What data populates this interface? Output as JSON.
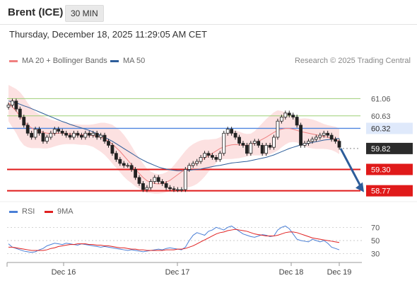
{
  "header": {
    "title": "Brent (ICE)",
    "interval": "30 MIN"
  },
  "timestamp": "Thursday, December 18, 2025 11:29:05 AM CET",
  "legend": {
    "ma20_bb": {
      "label": "MA 20 + Bollinger Bands",
      "color": "#f08080"
    },
    "ma50": {
      "label": "MA 50",
      "color": "#2d5d9a"
    }
  },
  "credit": "Research © 2025 Trading Central",
  "rsi_legend": {
    "rsi": {
      "label": "RSI",
      "color": "#4a7fd6"
    },
    "ma9": {
      "label": "9MA",
      "color": "#e02020"
    }
  },
  "chart_data": [
    {
      "type": "candlestick",
      "ylim": [
        58.5,
        61.4
      ],
      "x_ticks": [
        "Dec 16",
        "Dec 17",
        "Dec 18",
        "Dec 19"
      ],
      "levels": [
        {
          "value": "61.06",
          "kind": "resistance",
          "color": "#9ecf76"
        },
        {
          "value": "60.63",
          "kind": "resistance",
          "color": "#9ecf76"
        },
        {
          "value": "60.32",
          "kind": "pivot",
          "color": "#4f86e0"
        },
        {
          "value": "59.82",
          "kind": "last",
          "color": "#333333"
        },
        {
          "value": "59.30",
          "kind": "support",
          "color": "#e01a1a"
        },
        {
          "value": "58.77",
          "kind": "support",
          "color": "#e01a1a"
        }
      ],
      "close": [
        60.9,
        61.0,
        60.8,
        60.6,
        60.4,
        60.2,
        60.1,
        60.3,
        60.2,
        60.0,
        60.1,
        60.2,
        60.3,
        60.25,
        60.2,
        60.15,
        60.1,
        60.2,
        60.15,
        60.1,
        60.2,
        60.15,
        60.2,
        60.1,
        60.15,
        60.0,
        59.9,
        59.7,
        59.55,
        59.45,
        59.4,
        59.4,
        59.3,
        59.1,
        58.95,
        58.8,
        58.85,
        59.0,
        59.1,
        59.0,
        58.95,
        58.85,
        58.82,
        58.8,
        58.8,
        58.8,
        59.3,
        59.4,
        59.45,
        59.5,
        59.6,
        59.7,
        59.65,
        59.6,
        59.55,
        59.7,
        60.2,
        60.3,
        60.2,
        60.1,
        59.95,
        59.9,
        59.7,
        59.95,
        60.0,
        59.9,
        59.7,
        59.9,
        59.85,
        60.1,
        60.5,
        60.6,
        60.7,
        60.65,
        60.6,
        60.4,
        59.9,
        59.95,
        60.0,
        60.05,
        60.1,
        60.15,
        60.2,
        60.15,
        60.05,
        60.0,
        59.85
      ],
      "ma20": [
        60.95,
        60.85,
        60.75,
        60.62,
        60.5,
        60.4,
        60.33,
        60.28,
        60.25,
        60.22,
        60.2,
        60.19,
        60.19,
        60.2,
        60.2,
        60.19,
        60.18,
        60.18,
        60.17,
        60.16,
        60.16,
        60.15,
        60.14,
        60.12,
        60.1,
        60.06,
        60.0,
        59.93,
        59.84,
        59.75,
        59.64,
        59.53,
        59.42,
        59.3,
        59.2,
        59.1,
        59.02,
        58.98,
        58.95,
        58.94,
        58.95,
        58.98,
        59.03,
        59.1,
        59.17,
        59.24,
        59.3,
        59.36,
        59.41,
        59.46,
        59.52,
        59.58,
        59.64,
        59.7,
        59.76,
        59.82,
        59.86,
        59.89,
        59.91,
        59.92,
        59.91,
        59.9,
        59.9,
        59.92,
        59.95,
        60.0,
        60.05,
        60.1,
        60.16,
        60.22,
        60.27,
        60.3,
        60.32,
        60.32,
        60.3,
        60.27,
        60.24,
        60.22,
        60.2,
        60.18,
        60.16,
        60.14,
        60.12,
        60.1,
        60.08,
        60.05,
        60.0
      ],
      "bb_width": [
        0.45,
        0.5,
        0.55,
        0.6,
        0.6,
        0.55,
        0.5,
        0.45,
        0.42,
        0.4,
        0.38,
        0.35,
        0.32,
        0.3,
        0.28,
        0.26,
        0.25,
        0.25,
        0.25,
        0.25,
        0.25,
        0.26,
        0.28,
        0.32,
        0.36,
        0.4,
        0.44,
        0.48,
        0.5,
        0.52,
        0.52,
        0.5,
        0.46,
        0.42,
        0.38,
        0.35,
        0.3,
        0.27,
        0.25,
        0.24,
        0.24,
        0.25,
        0.27,
        0.3,
        0.35,
        0.4,
        0.46,
        0.5,
        0.52,
        0.52,
        0.5,
        0.46,
        0.4,
        0.35,
        0.3,
        0.28,
        0.3,
        0.33,
        0.35,
        0.35,
        0.33,
        0.3,
        0.28,
        0.27,
        0.3,
        0.35,
        0.4,
        0.45,
        0.48,
        0.5,
        0.5,
        0.45,
        0.4,
        0.35,
        0.32,
        0.3,
        0.32,
        0.35,
        0.36,
        0.36,
        0.35,
        0.33,
        0.31,
        0.3,
        0.3,
        0.31,
        0.32
      ],
      "ma50": [
        61.0,
        60.98,
        60.95,
        60.92,
        60.88,
        60.85,
        60.81,
        60.77,
        60.73,
        60.69,
        60.65,
        60.61,
        60.57,
        60.53,
        60.49,
        60.46,
        60.42,
        60.39,
        60.36,
        60.33,
        60.3,
        60.27,
        60.23,
        60.19,
        60.15,
        60.1,
        60.05,
        60.0,
        59.94,
        59.88,
        59.82,
        59.76,
        59.7,
        59.64,
        59.58,
        59.53,
        59.48,
        59.44,
        59.4,
        59.36,
        59.33,
        59.31,
        59.29,
        59.28,
        59.27,
        59.27,
        59.27,
        59.28,
        59.29,
        59.3,
        59.31,
        59.33,
        59.35,
        59.37,
        59.39,
        59.4,
        59.42,
        59.44,
        59.46,
        59.47,
        59.48,
        59.49,
        59.5,
        59.52,
        59.54,
        59.56,
        59.58,
        59.6,
        59.63,
        59.66,
        59.7,
        59.74,
        59.78,
        59.82,
        59.85,
        59.88,
        59.91,
        59.93,
        59.95,
        59.97,
        59.99,
        60.01,
        60.03,
        60.04,
        60.05,
        60.06,
        60.07
      ],
      "projection": {
        "from": 59.82,
        "to": 58.77
      }
    },
    {
      "type": "line",
      "ylim": [
        20,
        80
      ],
      "y_ticks": [
        "70",
        "50",
        "30"
      ],
      "series": [
        {
          "name": "RSI",
          "values": [
            45,
            40,
            38,
            36,
            34,
            33,
            32,
            33,
            36,
            38,
            42,
            44,
            46,
            45,
            44,
            46,
            45,
            44,
            43,
            45,
            44,
            43,
            42,
            41,
            40,
            41,
            40,
            39,
            38,
            37,
            36,
            35,
            36,
            35,
            34,
            33,
            34,
            35,
            36,
            37,
            36,
            38,
            39,
            38,
            37,
            36,
            40,
            50,
            58,
            62,
            60,
            58,
            64,
            66,
            70,
            68,
            66,
            70,
            72,
            68,
            64,
            60,
            58,
            56,
            55,
            57,
            59,
            58,
            56,
            57,
            66,
            70,
            72,
            68,
            60,
            52,
            50,
            49,
            48,
            52,
            50,
            48,
            50,
            46,
            40,
            38,
            36
          ]
        },
        {
          "name": "9MA",
          "values": [
            40,
            40,
            39,
            38,
            37,
            36,
            35,
            35,
            35,
            35,
            36,
            38,
            39,
            41,
            42,
            43,
            44,
            44,
            45,
            45,
            45,
            44,
            44,
            43,
            43,
            42,
            42,
            41,
            40,
            39,
            39,
            38,
            37,
            37,
            36,
            36,
            35,
            35,
            35,
            35,
            35,
            36,
            36,
            36,
            37,
            37,
            38,
            40,
            42,
            45,
            48,
            51,
            54,
            57,
            60,
            62,
            63,
            65,
            66,
            67,
            66,
            65,
            64,
            62,
            60,
            59,
            58,
            57,
            57,
            57,
            58,
            60,
            62,
            63,
            63,
            62,
            60,
            58,
            56,
            54,
            53,
            52,
            51,
            50,
            49,
            48,
            47
          ]
        }
      ]
    }
  ]
}
